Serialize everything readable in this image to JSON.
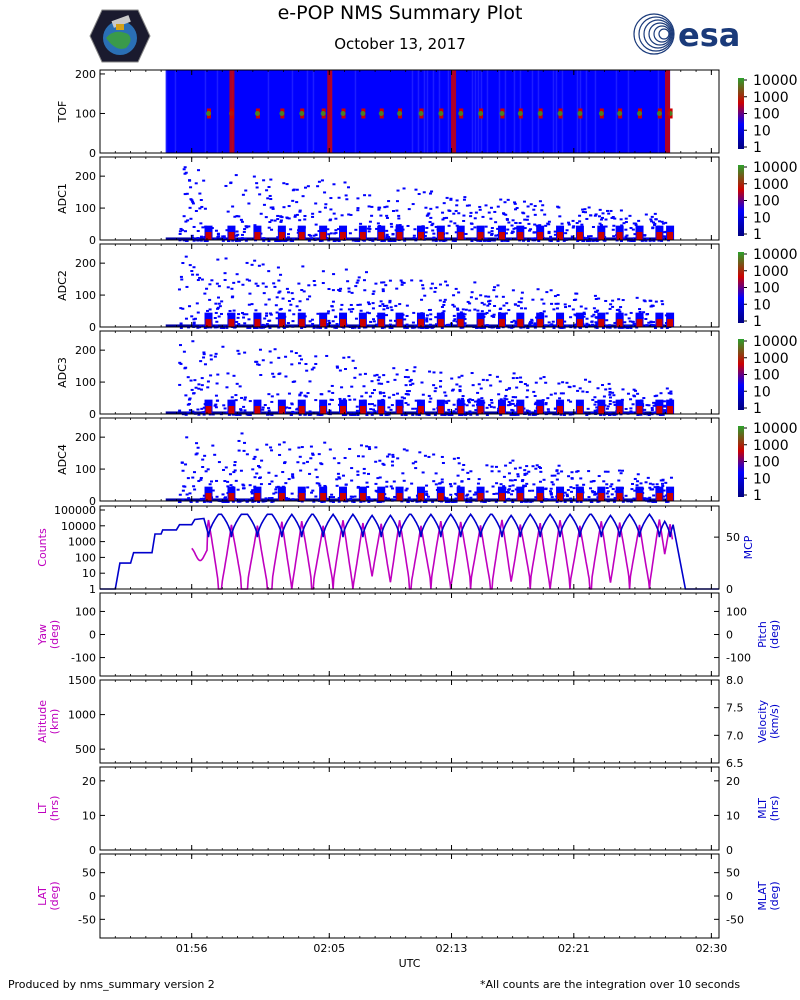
{
  "header": {
    "title": "e-POP NMS Summary Plot",
    "subtitle": "October 13, 2017",
    "esa_logo_text": "esa"
  },
  "footer": {
    "left": "Produced by nms_summary version 2",
    "right": "*All counts are the integration over 10 seconds"
  },
  "colors": {
    "magenta": "#bf00bf",
    "blue": "#0000cc",
    "cmap_bg": "#0000ff",
    "cmap_low": "#0000a0",
    "cmap_mid": "#cc0000",
    "cmap_high": "#2ca02c"
  },
  "chart_data": {
    "type": "multi-panel",
    "x_axis": {
      "label": "UTC",
      "range_minutes": [
        110,
        150.5
      ],
      "ticks": [
        {
          "value": 116,
          "label": "01:56"
        },
        {
          "value": 125,
          "label": "02:05"
        },
        {
          "value": 133,
          "label": "02:13"
        },
        {
          "value": 141,
          "label": "02:21"
        },
        {
          "value": 150,
          "label": "02:30"
        }
      ]
    },
    "data_window_minutes": [
      115.5,
      147.5
    ],
    "colorbar_labels": [
      "10000",
      "1000",
      "100",
      "10",
      "1"
    ],
    "spectrograms": [
      {
        "name": "TOF",
        "ylim": [
          0,
          210
        ],
        "yticks": [
          0,
          100,
          200
        ],
        "start": 114.3,
        "end": 147.3,
        "full_fill": true
      },
      {
        "name": "ADC1",
        "ylim": [
          0,
          260
        ],
        "yticks": [
          0,
          100,
          200
        ],
        "start": 114.3,
        "end": 147.3
      },
      {
        "name": "ADC2",
        "ylim": [
          0,
          260
        ],
        "yticks": [
          0,
          100,
          200
        ],
        "start": 114.3,
        "end": 147.3
      },
      {
        "name": "ADC3",
        "ylim": [
          0,
          260
        ],
        "yticks": [
          0,
          100,
          200
        ],
        "start": 114.3,
        "end": 147.3
      },
      {
        "name": "ADC4",
        "ylim": [
          0,
          260
        ],
        "yticks": [
          0,
          100,
          200
        ],
        "start": 114.3,
        "end": 147.3
      }
    ],
    "spike_times": [
      117.1,
      118.6,
      120.3,
      121.9,
      123.2,
      124.6,
      125.9,
      127.2,
      128.4,
      129.6,
      131.0,
      132.3,
      133.6,
      134.9,
      136.3,
      137.5,
      138.8,
      140.1,
      141.4,
      142.8,
      144.0,
      145.3,
      146.6,
      147.3
    ],
    "counts_panel": {
      "left_label": "Counts",
      "left_ticks": [
        "1",
        "10",
        "100",
        "1000",
        "10000",
        "100000"
      ],
      "left_range_log10": [
        0,
        5
      ],
      "right_label": "MCP",
      "right_ticks": [
        "0",
        "50"
      ],
      "right_range": [
        0,
        80
      ],
      "counts_series": {
        "name": "Counts",
        "peak_log10": 4.2,
        "trough_log10": 0,
        "baseline_log10": 2.2
      },
      "mcp_series": {
        "name": "MCP",
        "steps": [
          {
            "t": 110.0,
            "v": 0
          },
          {
            "t": 111.0,
            "v": 0
          },
          {
            "t": 111.3,
            "v": 25
          },
          {
            "t": 112.0,
            "v": 25
          },
          {
            "t": 112.2,
            "v": 35
          },
          {
            "t": 113.4,
            "v": 35
          },
          {
            "t": 113.6,
            "v": 53
          },
          {
            "t": 114.0,
            "v": 53
          },
          {
            "t": 114.1,
            "v": 57
          },
          {
            "t": 115.0,
            "v": 57
          },
          {
            "t": 115.2,
            "v": 62
          },
          {
            "t": 116.0,
            "v": 62
          },
          {
            "t": 116.2,
            "v": 67
          },
          {
            "t": 116.8,
            "v": 68
          }
        ],
        "oscillation_high": 72,
        "oscillation_low": 50,
        "tail": [
          {
            "t": 147.5,
            "v": 62
          },
          {
            "t": 148.3,
            "v": 0
          },
          {
            "t": 150.5,
            "v": 0
          }
        ]
      }
    },
    "empty_panels": [
      {
        "left_label": "Yaw",
        "left_unit": "(deg)",
        "left_ticks": [
          "-100",
          "0",
          "100"
        ],
        "left_range": [
          -180,
          180
        ],
        "right_label": "Pitch",
        "right_unit": "(deg)",
        "right_ticks": [
          "-100",
          "0",
          "100"
        ],
        "right_range": [
          -180,
          180
        ]
      },
      {
        "left_label": "Altitude",
        "left_unit": "(km)",
        "left_ticks": [
          "500",
          "1000",
          "1500"
        ],
        "left_range": [
          300,
          1500
        ],
        "right_label": "Velocity",
        "right_unit": "(km/s)",
        "right_ticks": [
          "6.5",
          "7.0",
          "7.5",
          "8.0"
        ],
        "right_range": [
          6.5,
          8.0
        ]
      },
      {
        "left_label": "LT",
        "left_unit": "(hrs)",
        "left_ticks": [
          "0",
          "10",
          "20"
        ],
        "left_range": [
          0,
          24
        ],
        "right_label": "MLT",
        "right_unit": "(hrs)",
        "right_ticks": [
          "0",
          "10",
          "20"
        ],
        "right_range": [
          0,
          24
        ]
      },
      {
        "left_label": "LAT",
        "left_unit": "(deg)",
        "left_ticks": [
          "-50",
          "0",
          "50"
        ],
        "left_range": [
          -90,
          90
        ],
        "right_label": "MLAT",
        "right_unit": "(deg)",
        "right_ticks": [
          "-50",
          "0",
          "50"
        ],
        "right_range": [
          -90,
          90
        ]
      }
    ]
  }
}
